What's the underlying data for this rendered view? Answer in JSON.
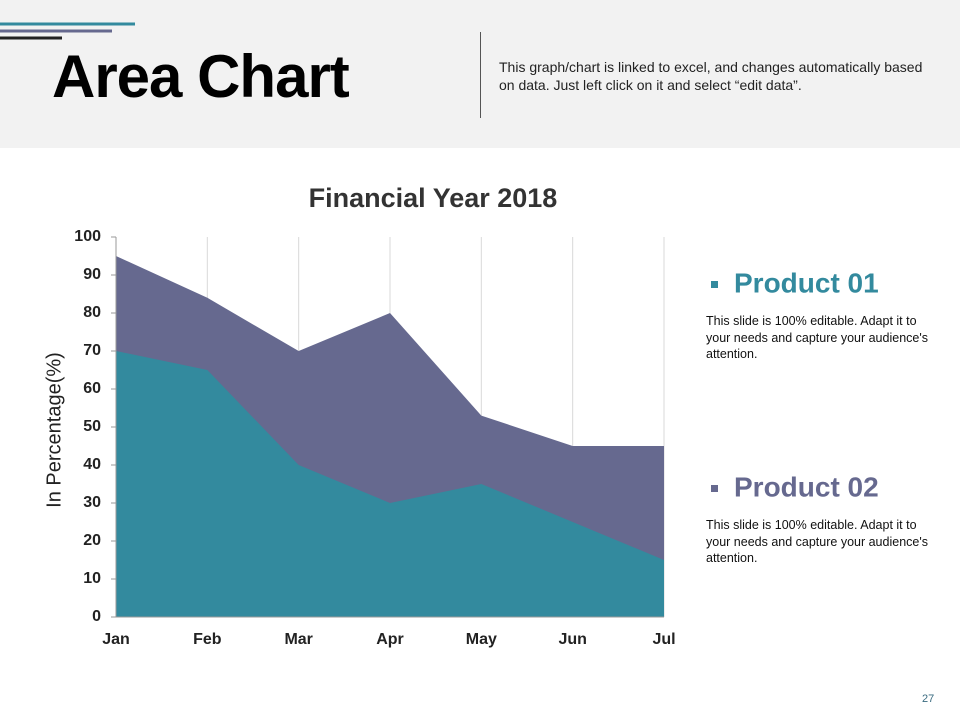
{
  "header": {
    "title": "Area Chart",
    "description": "This graph/chart is linked to excel, and changes automatically based on data. Just left click on it and select “edit data”."
  },
  "chart_data": {
    "type": "area",
    "title": "Financial Year 2018",
    "y_label": "In Percentage(%)",
    "categories": [
      "Jan",
      "Feb",
      "Mar",
      "Apr",
      "May",
      "Jun",
      "Jul"
    ],
    "series": [
      {
        "name": "Product 01",
        "color": "#338a9e",
        "values": [
          70,
          65,
          40,
          30,
          35,
          25,
          15
        ]
      },
      {
        "name": "Product 02",
        "color": "#66698f",
        "values": [
          95,
          84,
          70,
          80,
          53,
          45,
          45
        ]
      }
    ],
    "ylim": [
      0,
      100
    ],
    "yticks": [
      0,
      10,
      20,
      30,
      40,
      50,
      60,
      70,
      80,
      90,
      100
    ],
    "grid": "x"
  },
  "legend_notes": [
    "This slide is 100% editable. Adapt it to your needs and capture your audience's attention.",
    "This slide is 100% editable. Adapt it to your needs and capture your audience's attention."
  ],
  "page_number": "27"
}
